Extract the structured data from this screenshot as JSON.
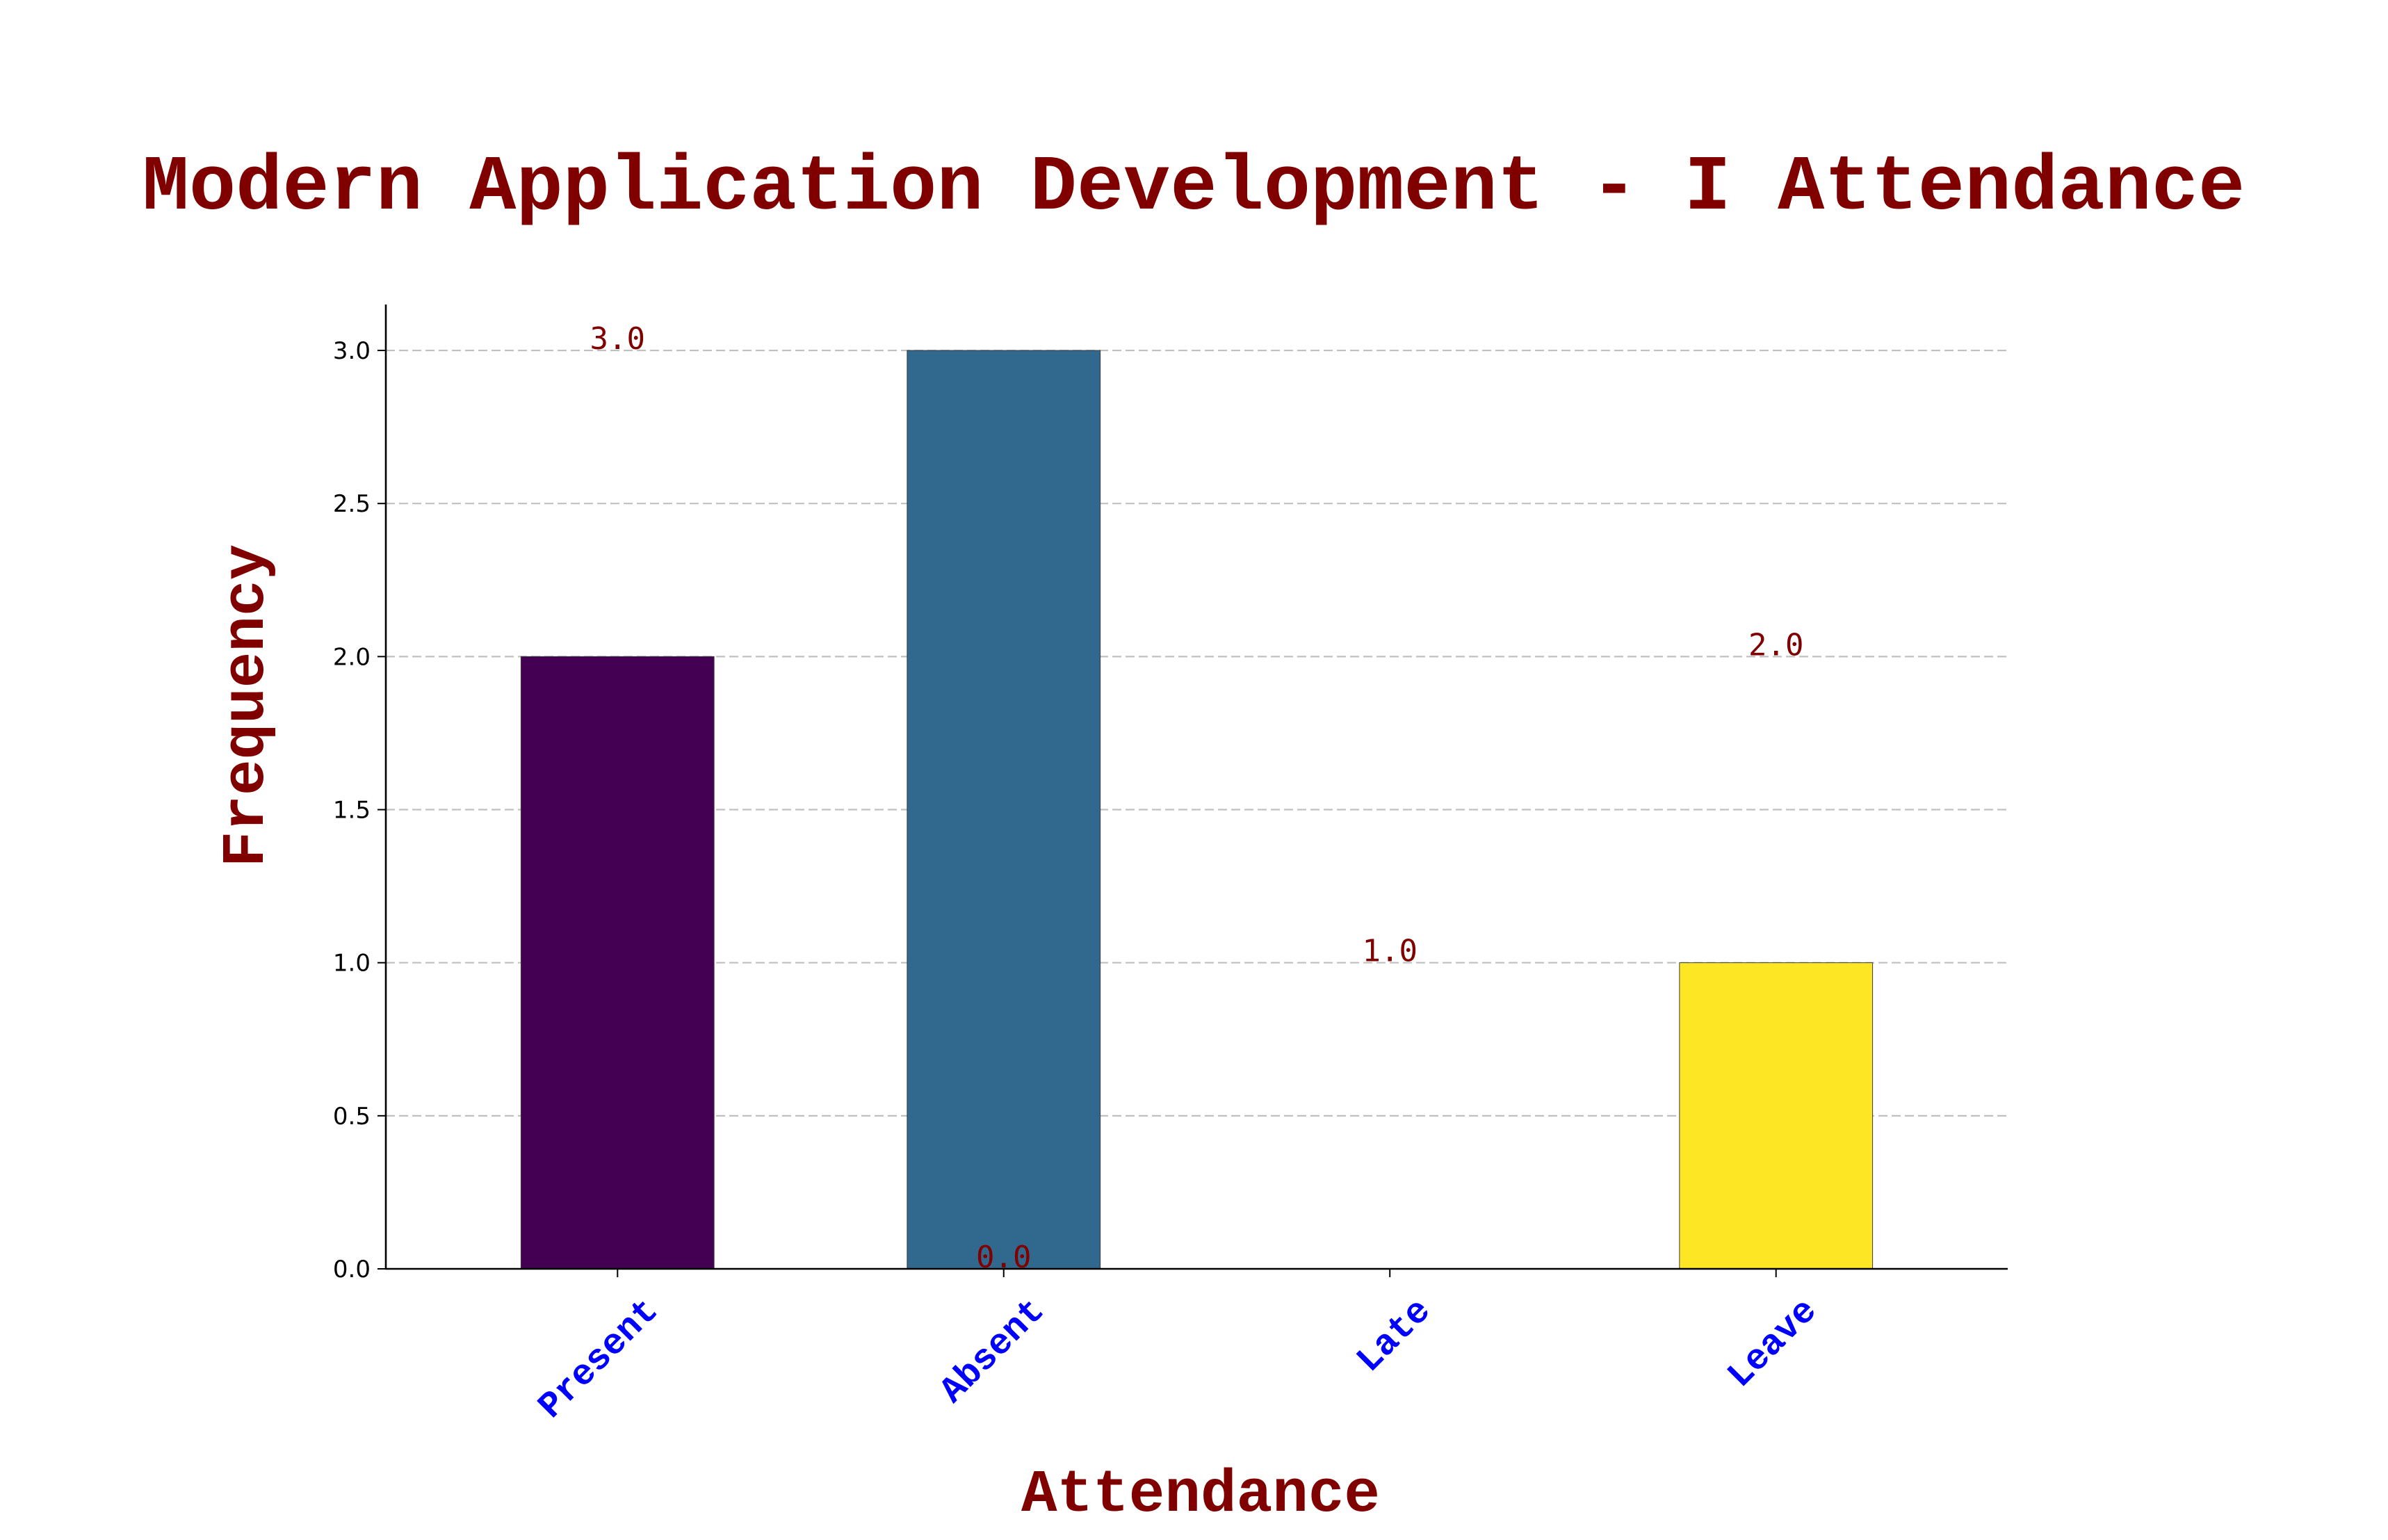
{
  "chart_data": {
    "type": "bar",
    "title": "Modern Application Development - I Attendance",
    "xlabel": "Attendance",
    "ylabel": "Frequency",
    "categories": [
      "Present",
      "Absent",
      "Late",
      "Leave"
    ],
    "values": [
      2,
      3,
      0,
      1
    ],
    "bar_labels": [
      "2.0",
      "3.0",
      "0.0",
      "1.0"
    ],
    "bar_colors": [
      "#440154",
      "#31688e",
      "#35b779",
      "#fde725"
    ],
    "ylim": [
      0,
      3.15
    ],
    "yticks": [
      0.0,
      0.5,
      1.0,
      1.5,
      2.0,
      2.5,
      3.0
    ],
    "ytick_labels": [
      "0.0",
      "0.5",
      "1.0",
      "1.5",
      "2.0",
      "2.5",
      "3.0"
    ],
    "grid": "y-dashed",
    "colors": {
      "title": "#800000",
      "axis_label": "#800000",
      "category_label": "#0000ff",
      "data_label": "#800000",
      "grid": "#c0c0c0",
      "axis": "#000000"
    }
  }
}
